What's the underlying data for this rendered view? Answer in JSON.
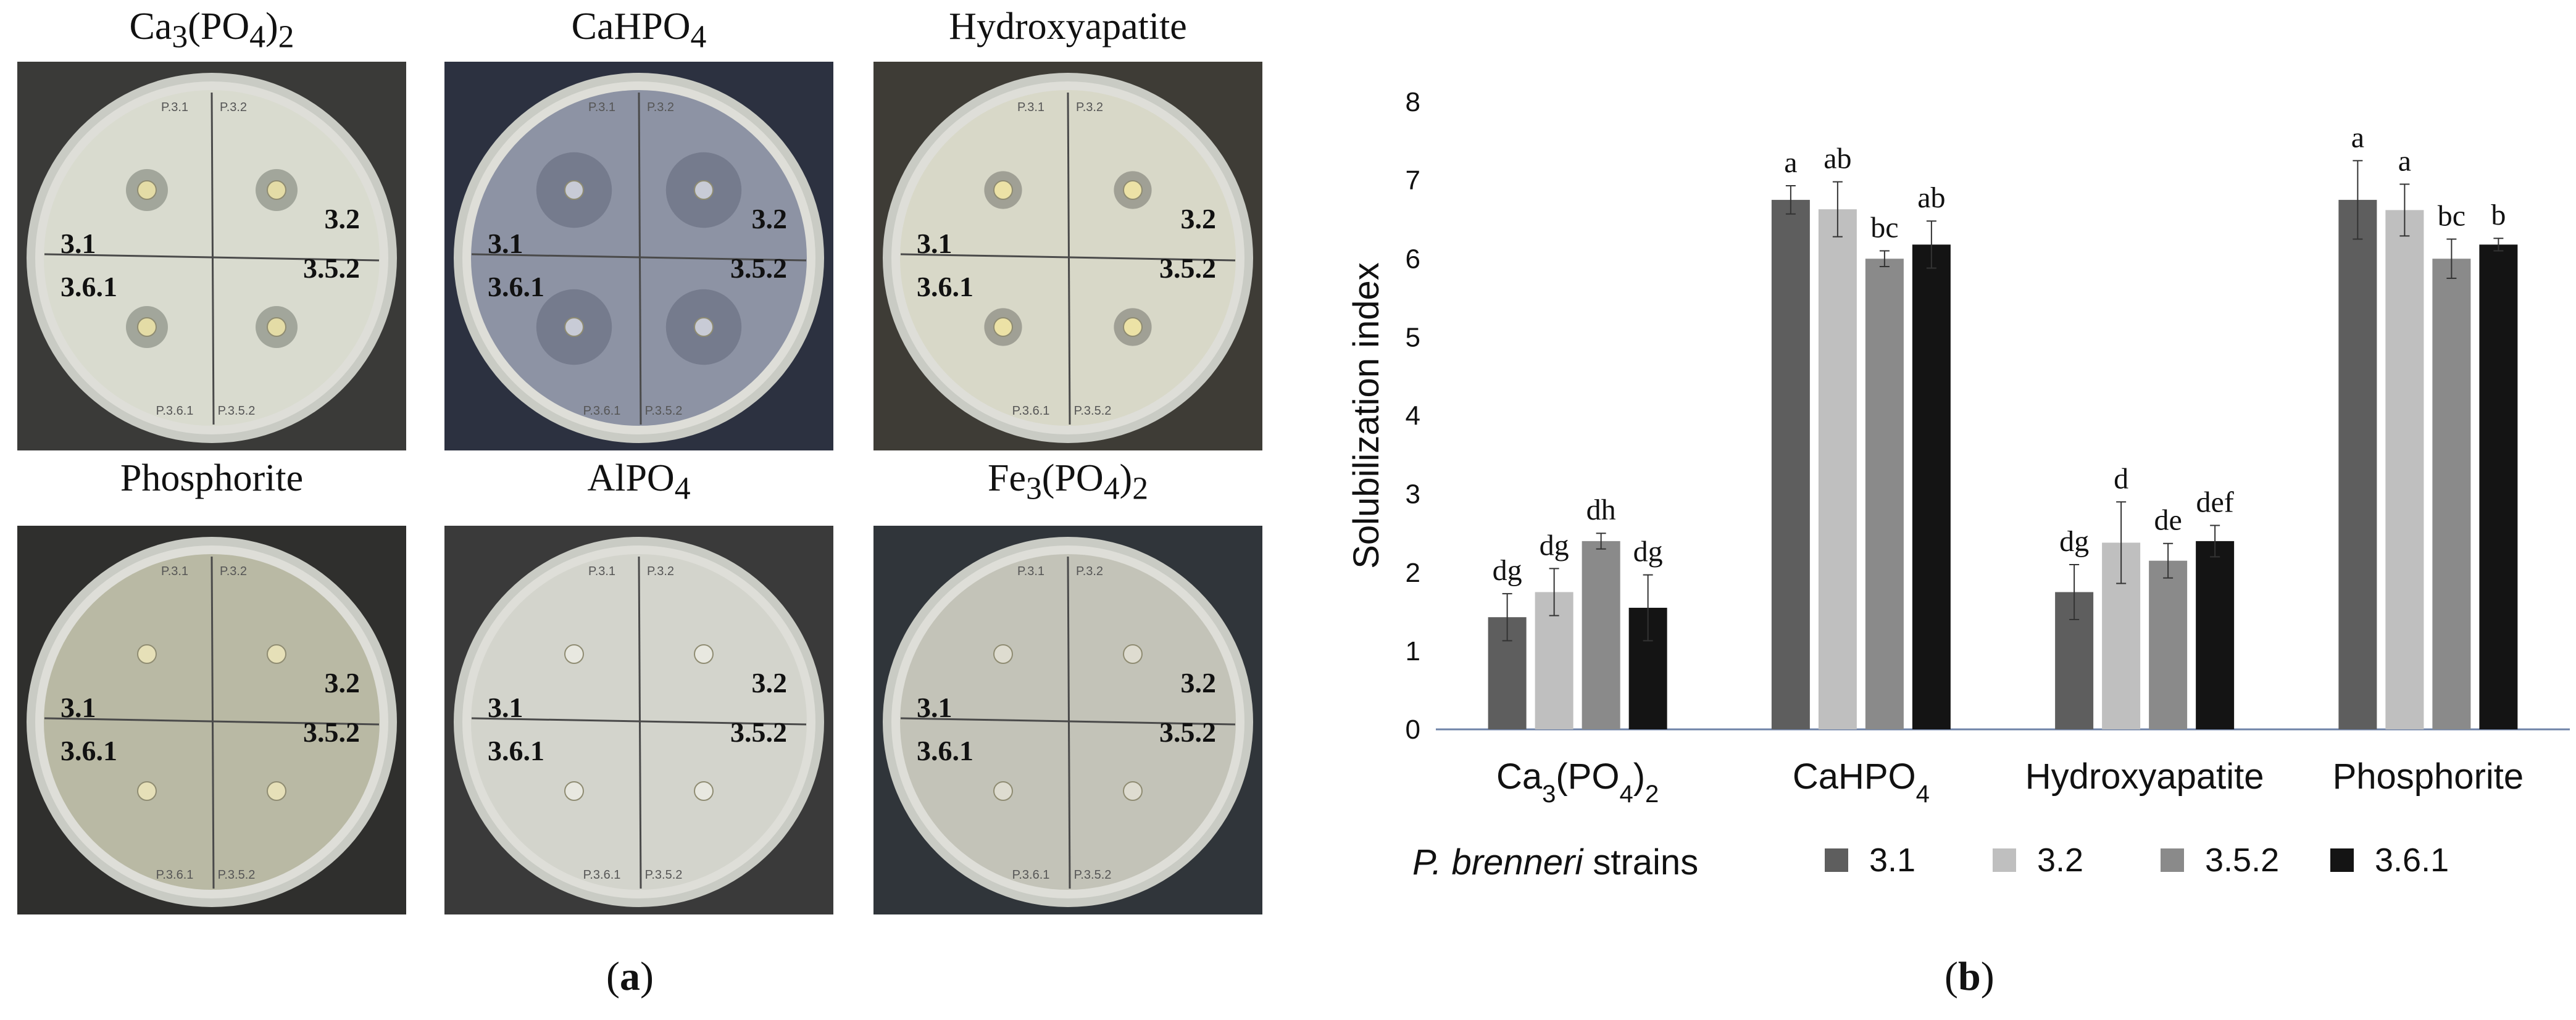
{
  "panel_a": {
    "plates": [
      {
        "title_html": "Ca<sub>3</sub>(PO<sub>4</sub>)<sub>2</sub>",
        "title_text": "Ca3(PO4)2",
        "bg": "#3a3a38",
        "agar": "#d9dbcf",
        "halo": true,
        "halo_color": "#8f948a",
        "halo_size": 1.0,
        "colony": "#e4dca6",
        "labels": [
          "3.1",
          "3.2",
          "3.6.1",
          "3.5.2"
        ],
        "rim_text": [
          "P.3.1",
          "P.3.2",
          "P.3.6.1",
          "P.3.5.2"
        ]
      },
      {
        "title_html": "CaHPO<sub>4</sub>",
        "title_text": "CaHPO4",
        "bg": "#2c3140",
        "agar": "#8d93a4",
        "halo": true,
        "halo_color": "#6d7385",
        "halo_size": 1.8,
        "colony": "#c8cbd6",
        "labels": [
          "3.1",
          "3.2",
          "3.6.1",
          "3.5.2"
        ],
        "rim_text": [
          "P.3.1",
          "P.3.2",
          "P.3.6.1",
          "P.3.5.2"
        ]
      },
      {
        "title_html": "Hydroxyapatite",
        "title_text": "Hydroxyapatite",
        "bg": "#3e3c36",
        "agar": "#d8d8c8",
        "halo": true,
        "halo_color": "#8e8e84",
        "halo_size": 0.9,
        "colony": "#ece2a6",
        "labels": [
          "3.1",
          "3.2",
          "3.6.1",
          "3.5.2"
        ],
        "rim_text": [
          "P.3.1",
          "P.3.2",
          "P.3.6.1",
          "P.3.5.2"
        ]
      },
      {
        "title_html": "Phosphorite",
        "title_text": "Phosphorite",
        "bg": "#2f2f2d",
        "agar": "#b9b9a4",
        "halo": false,
        "halo_color": "#9a9a88",
        "halo_size": 0.6,
        "colony": "#e6e0b8",
        "labels": [
          "3.1",
          "3.2",
          "3.6.1",
          "3.5.2"
        ],
        "rim_text": [
          "P.3.1",
          "P.3.2",
          "P.3.6.1",
          "P.3.5.2"
        ]
      },
      {
        "title_html": "AlPO<sub>4</sub>",
        "title_text": "AlPO4",
        "bg": "#3a3a3a",
        "agar": "#d3d4cc",
        "halo": false,
        "halo_color": "#c4c4bc",
        "halo_size": 0.5,
        "colony": "#e8e8e0",
        "labels": [
          "3.1",
          "3.2",
          "3.6.1",
          "3.5.2"
        ],
        "rim_text": [
          "P.3.1",
          "P.3.2",
          "P.3.6.1",
          "P.3.5.2"
        ]
      },
      {
        "title_html": "Fe<sub>3</sub>(PO<sub>4</sub>)<sub>2</sub>",
        "title_text": "Fe3(PO4)2",
        "bg": "#30353a",
        "agar": "#c3c3b8",
        "halo": false,
        "halo_color": "#b0b0a6",
        "halo_size": 0.5,
        "colony": "#dedcd0",
        "labels": [
          "3.1",
          "3.2",
          "3.6.1",
          "3.5.2"
        ],
        "rim_text": [
          "P.3.1",
          "P.3.2",
          "P.3.6.1",
          "P.3.5.2"
        ]
      }
    ],
    "caption": {
      "open": "(",
      "letter": "a",
      "close": ")"
    }
  },
  "chart_data": {
    "type": "bar",
    "categories": [
      "Ca3(PO4)2",
      "CaHPO4",
      "Hydroxyapatite",
      "Phosphorite"
    ],
    "category_labels_html": [
      "Ca<tspan baseline-shift=\"sub\" font-size=\"40\">3</tspan>(PO<tspan baseline-shift=\"sub\" font-size=\"40\">4</tspan>)<tspan baseline-shift=\"sub\" font-size=\"40\">2</tspan>",
      "CaHPO<tspan baseline-shift=\"sub\" font-size=\"40\">4</tspan>",
      "Hydroxyapatite",
      "Phosphorite"
    ],
    "ylabel": "Solubilization index",
    "ylim": [
      0,
      8
    ],
    "yticks": [
      0,
      1,
      2,
      3,
      4,
      5,
      6,
      7,
      8
    ],
    "grid": false,
    "legend_title_italic": "P. brenneri",
    "legend_title_rest": " strains",
    "legend_position": "bottom",
    "series": [
      {
        "name": "3.1",
        "color": "#5e5e5e",
        "values": [
          1.43,
          6.75,
          1.75,
          6.75
        ],
        "errors": [
          0.3,
          0.18,
          0.35,
          0.5
        ],
        "letters": [
          "dg",
          "a",
          "dg",
          "a"
        ]
      },
      {
        "name": "3.2",
        "color": "#bfbfbf",
        "values": [
          1.75,
          6.63,
          2.38,
          6.62
        ],
        "errors": [
          0.3,
          0.35,
          0.52,
          0.33
        ],
        "letters": [
          "dg",
          "ab",
          "d",
          "a"
        ]
      },
      {
        "name": "3.5.2",
        "color": "#8a8a8a",
        "values": [
          2.4,
          6.0,
          2.15,
          6.0
        ],
        "errors": [
          0.1,
          0.1,
          0.22,
          0.25
        ],
        "letters": [
          "dh",
          "bc",
          "de",
          "bc"
        ]
      },
      {
        "name": "3.6.1",
        "color": "#141414",
        "values": [
          1.55,
          6.18,
          2.4,
          6.18
        ],
        "errors": [
          0.42,
          0.3,
          0.2,
          0.08
        ],
        "letters": [
          "dg",
          "ab",
          "def",
          "b"
        ]
      }
    ],
    "axis_color": "#6f83a8"
  },
  "panel_b": {
    "caption": {
      "open": "(",
      "letter": "b",
      "close": ")"
    }
  }
}
